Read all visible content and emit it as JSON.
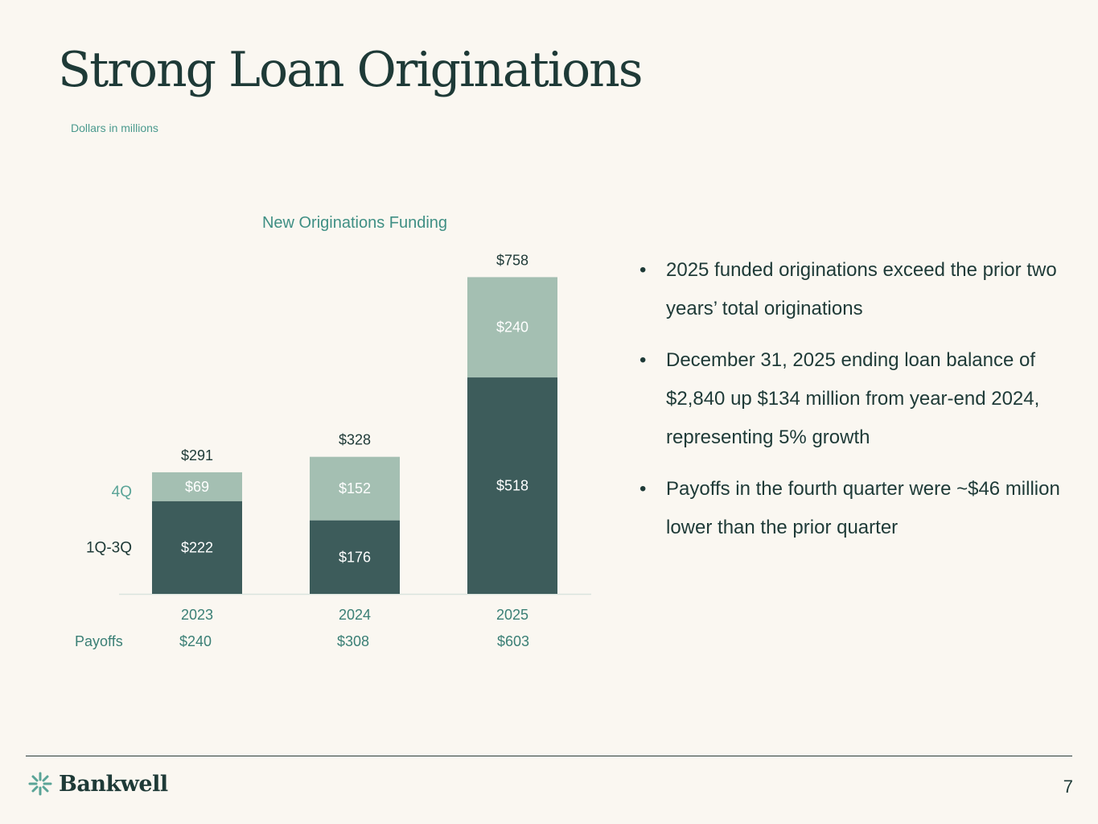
{
  "title": "Strong Loan Originations",
  "subtitle": "Dollars in millions",
  "chart_data": {
    "type": "bar",
    "stacked": true,
    "title": "New Originations Funding",
    "categories": [
      "2023",
      "2024",
      "2025"
    ],
    "series": [
      {
        "name": "1Q-3Q",
        "values": [
          222,
          176,
          518
        ],
        "labels": [
          "$222",
          "$176",
          "$518"
        ],
        "color": "#3d5c5b"
      },
      {
        "name": "4Q",
        "values": [
          69,
          152,
          240
        ],
        "labels": [
          "$69",
          "$152",
          "$240"
        ],
        "color": "#a4bfb2"
      }
    ],
    "totals": [
      291,
      328,
      758
    ],
    "total_labels": [
      "$291",
      "$328",
      "$758"
    ],
    "payoffs_label": "Payoffs",
    "payoffs": [
      "$240",
      "$308",
      "$603"
    ],
    "ylim": [
      0,
      780
    ],
    "colors": {
      "series_label": "#1e3a37",
      "q4_label": "#5aa497",
      "axis_text": "#3a7f75",
      "axis_line": "#d9e4de"
    }
  },
  "bullets": [
    "2025 funded originations exceed the prior two years’ total originations",
    "December 31, 2025 ending loan balance of $2,840 up $134 million from year-end 2024, representing 5% growth",
    "Payoffs in the fourth quarter were ~$46 million lower than the prior quarter"
  ],
  "bullet_char": "•",
  "footer": {
    "logo_text": "Bankwell",
    "logo_icon": "bankwell-mark-icon",
    "page_number": "7"
  }
}
